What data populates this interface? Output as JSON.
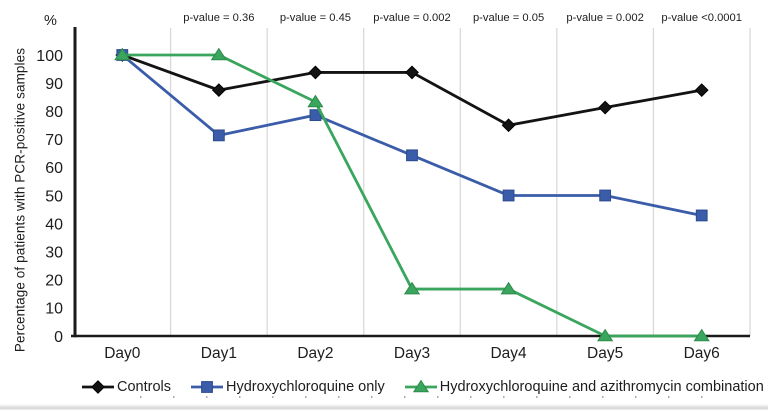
{
  "chart_data": {
    "type": "line",
    "title": "",
    "percent_symbol": "%",
    "ylabel": "Percentage of patients with PCR-positive samples",
    "xlabel": "",
    "categories": [
      "Day0",
      "Day1",
      "Day2",
      "Day3",
      "Day4",
      "Day5",
      "Day6"
    ],
    "yticks": [
      0,
      10,
      20,
      30,
      40,
      50,
      60,
      70,
      80,
      90,
      100
    ],
    "ylim": [
      0,
      100
    ],
    "grid": "vertical-only",
    "legend_position": "bottom",
    "p_value_labels": [
      "p-value = 0.36",
      "p-value = 0.45",
      "p-value = 0.002",
      "p-value = 0.05",
      "p-value = 0.002",
      "p-value <0.0001"
    ],
    "p_value_days": [
      "Day1",
      "Day2",
      "Day3",
      "Day4",
      "Day5",
      "Day6"
    ],
    "series": [
      {
        "name": "Controls",
        "marker": "diamond",
        "color": "#131313",
        "edge": "#000000",
        "values": [
          100,
          87.5,
          93.8,
          93.8,
          75,
          81.3,
          87.5
        ]
      },
      {
        "name": "Hydroxychloroquine only",
        "marker": "square",
        "color": "#3a5ca9",
        "edge": "#2c4a8f",
        "values": [
          100,
          71.4,
          78.6,
          64.3,
          50,
          50,
          42.9
        ]
      },
      {
        "name": "Hydroxychloroquine and azithromycin combination",
        "marker": "triangle",
        "color": "#3aa55c",
        "edge": "#2e8b4d",
        "values": [
          100,
          100,
          83.3,
          16.7,
          16.7,
          0,
          0
        ]
      }
    ]
  },
  "style_colors": {
    "gridline": "#d9d9d9",
    "axis": "#1a1a1a",
    "text": "#1d1d1d"
  }
}
